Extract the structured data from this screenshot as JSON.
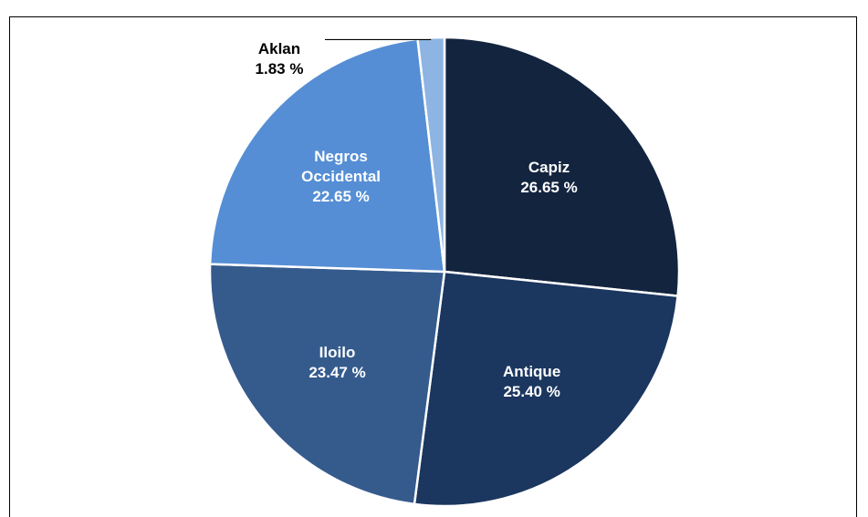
{
  "chart_data": {
    "type": "pie",
    "categories": [
      "Capiz",
      "Antique",
      "Iloilo",
      "Negros Occidental",
      "Aklan"
    ],
    "values": [
      26.65,
      25.4,
      23.47,
      22.65,
      1.83
    ],
    "value_labels": [
      "26.65 %",
      "25.40 %",
      "23.47 %",
      "22.65 %",
      "1.83 %"
    ],
    "colors": [
      "#13243f",
      "#1b365f",
      "#355b8d",
      "#558ed5",
      "#8db4e2"
    ]
  }
}
